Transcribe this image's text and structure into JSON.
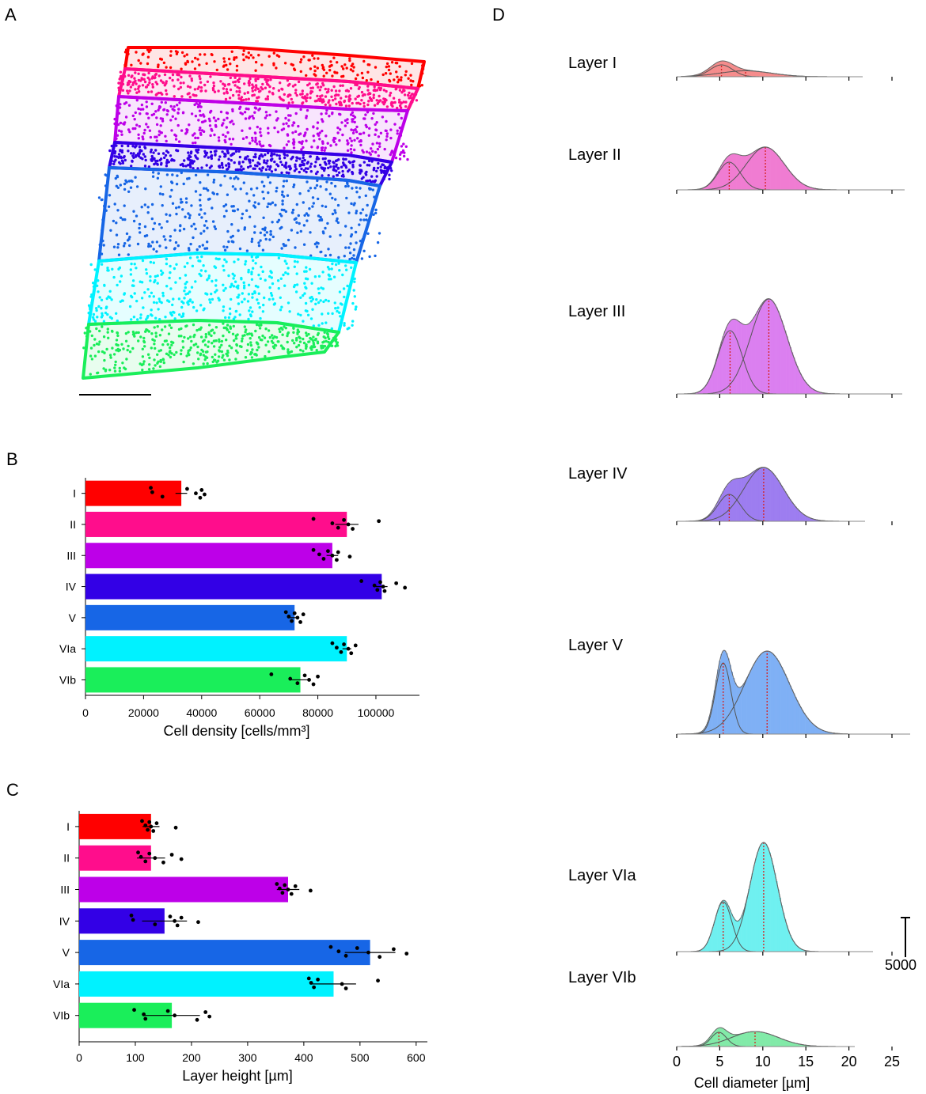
{
  "panel_labels": {
    "a": "A",
    "b": "B",
    "c": "C",
    "d": "D"
  },
  "colors": {
    "I": "#ff0000",
    "II": "#ff0d8c",
    "III": "#bd00e8",
    "IV": "#3300e6",
    "V": "#1766e6",
    "VIa": "#00f2ff",
    "VIb": "#1aee5a"
  },
  "hist_colors": {
    "I": "#f58c8c",
    "II": "#f07cd2",
    "III": "#db7ff0",
    "IV": "#9d7df0",
    "V": "#7fb0f5",
    "VIa": "#6ff0f0",
    "VIb": "#82eaa8"
  },
  "chart_data": [
    {
      "panel": "B",
      "type": "bar",
      "orientation": "horizontal",
      "categories": [
        "I",
        "II",
        "III",
        "IV",
        "V",
        "VIa",
        "VIb"
      ],
      "values": [
        33000,
        90000,
        85000,
        102000,
        72000,
        90000,
        74000
      ],
      "errors": [
        2000,
        4000,
        2000,
        2000,
        1500,
        1500,
        3000
      ],
      "points": [
        [
          22500,
          23000,
          26500,
          35000,
          38000,
          39500,
          40000,
          41000
        ],
        [
          78500,
          85000,
          87000,
          89000,
          90500,
          92000,
          101000
        ],
        [
          78500,
          80500,
          82000,
          83500,
          85000,
          86500,
          87000,
          91000
        ],
        [
          95000,
          99500,
          100500,
          101500,
          102500,
          103000,
          107000,
          110000
        ],
        [
          69000,
          70000,
          71000,
          72000,
          73000,
          74000,
          75000
        ],
        [
          85000,
          86500,
          88000,
          89000,
          90500,
          91500,
          93000
        ],
        [
          64000,
          70500,
          73000,
          75500,
          77000,
          78500,
          80000
        ]
      ],
      "xlabel": "Cell density [cells/mm³]",
      "xlim": [
        0,
        115000
      ],
      "xticks": [
        0,
        20000,
        40000,
        60000,
        80000,
        100000
      ],
      "xtick_labels": [
        "0",
        "20000",
        "40000",
        "60000",
        "80000",
        "100000"
      ]
    },
    {
      "panel": "C",
      "type": "bar",
      "orientation": "horizontal",
      "categories": [
        "I",
        "II",
        "III",
        "IV",
        "V",
        "VIa",
        "VIb"
      ],
      "values": [
        128,
        128,
        372,
        152,
        518,
        453,
        165
      ],
      "errors": [
        15,
        25,
        20,
        40,
        45,
        40,
        50
      ],
      "points": [
        [
          112,
          118,
          122,
          125,
          128,
          132,
          138,
          172
        ],
        [
          105,
          110,
          118,
          125,
          135,
          150,
          165,
          182
        ],
        [
          352,
          357,
          362,
          366,
          372,
          378,
          385,
          412
        ],
        [
          93,
          96,
          135,
          162,
          170,
          175,
          182,
          212
        ],
        [
          448,
          462,
          475,
          495,
          515,
          535,
          560,
          583
        ],
        [
          409,
          413,
          418,
          425,
          468,
          475,
          532
        ],
        [
          98,
          115,
          118,
          158,
          170,
          210,
          225,
          232
        ]
      ],
      "xlabel": "Layer height [µm]",
      "xlim": [
        0,
        620
      ],
      "xticks": [
        0,
        100,
        200,
        300,
        400,
        500,
        600
      ],
      "xtick_labels": [
        "0",
        "100",
        "200",
        "300",
        "400",
        "500",
        "600"
      ]
    },
    {
      "panel": "D",
      "type": "histogram",
      "xlabel": "Cell diameter [µm]",
      "xlim": [
        0,
        25
      ],
      "xticks": [
        0,
        5,
        10,
        15,
        20,
        25
      ],
      "xtick_labels": [
        "0",
        "5",
        "10",
        "15",
        "20",
        "25"
      ],
      "scale_bar_label": "5000",
      "scale_bar_value": 5000,
      "series": [
        {
          "name": "I",
          "label": "Layer I",
          "components": [
            {
              "mean": 5.2,
              "sd": 1.3,
              "amp": 1500
            },
            {
              "mean": 8.0,
              "sd": 3.0,
              "amp": 750
            }
          ]
        },
        {
          "name": "II",
          "label": "Layer II",
          "components": [
            {
              "mean": 6.1,
              "sd": 1.3,
              "amp": 3500
            },
            {
              "mean": 10.3,
              "sd": 2.2,
              "amp": 5400
            }
          ]
        },
        {
          "name": "III",
          "label": "Layer III",
          "components": [
            {
              "mean": 6.2,
              "sd": 1.4,
              "amp": 8000
            },
            {
              "mean": 10.7,
              "sd": 2.1,
              "amp": 12000
            }
          ]
        },
        {
          "name": "IV",
          "label": "Layer IV",
          "components": [
            {
              "mean": 6.1,
              "sd": 1.3,
              "amp": 3400
            },
            {
              "mean": 10.1,
              "sd": 2.3,
              "amp": 6800
            }
          ]
        },
        {
          "name": "V",
          "label": "Layer V",
          "components": [
            {
              "mean": 5.4,
              "sd": 0.9,
              "amp": 9000
            },
            {
              "mean": 10.5,
              "sd": 2.6,
              "amp": 10500
            }
          ]
        },
        {
          "name": "VIa",
          "label": "Layer VIa",
          "components": [
            {
              "mean": 5.4,
              "sd": 1.0,
              "amp": 6300
            },
            {
              "mean": 10.1,
              "sd": 1.6,
              "amp": 13800
            }
          ]
        },
        {
          "name": "VIb",
          "label": "Layer VIb",
          "components": [
            {
              "mean": 4.9,
              "sd": 0.9,
              "amp": 1800
            },
            {
              "mean": 9.1,
              "sd": 2.7,
              "amp": 1900
            }
          ]
        }
      ]
    }
  ]
}
